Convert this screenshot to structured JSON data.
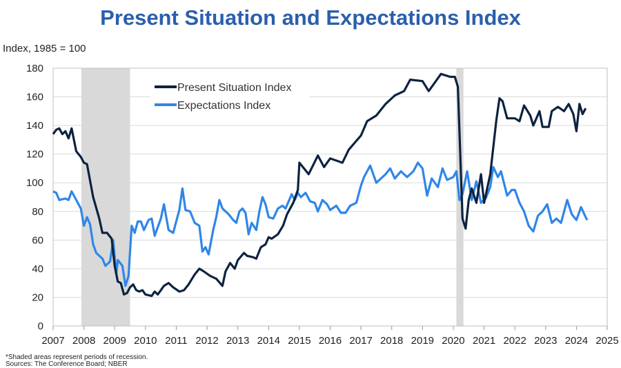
{
  "chart_data": {
    "type": "line",
    "title": "Present Situation and Expectations Index",
    "ylabel": "Index, 1985 = 100",
    "xlabel": "",
    "xlim": [
      2007,
      2025
    ],
    "ylim": [
      0,
      180
    ],
    "xticks": [
      2007,
      2008,
      2009,
      2010,
      2011,
      2012,
      2013,
      2014,
      2015,
      2016,
      2017,
      2018,
      2019,
      2020,
      2021,
      2022,
      2023,
      2024,
      2025
    ],
    "yticks": [
      0,
      20,
      40,
      60,
      80,
      100,
      120,
      140,
      160,
      180
    ],
    "grid": "horizontal",
    "legend": "top-left",
    "recessions": [
      [
        2007.92,
        2009.5
      ],
      [
        2020.1,
        2020.33
      ]
    ],
    "series": [
      {
        "name": "Present Situation Index",
        "color": "#0d2240",
        "x": [
          2007.0,
          2007.1,
          2007.2,
          2007.3,
          2007.4,
          2007.5,
          2007.6,
          2007.75,
          2007.9,
          2008.0,
          2008.1,
          2008.3,
          2008.5,
          2008.6,
          2008.75,
          2008.9,
          2009.0,
          2009.1,
          2009.2,
          2009.3,
          2009.4,
          2009.5,
          2009.6,
          2009.7,
          2009.8,
          2009.9,
          2010.0,
          2010.2,
          2010.3,
          2010.4,
          2010.6,
          2010.75,
          2010.9,
          2011.1,
          2011.25,
          2011.4,
          2011.6,
          2011.75,
          2011.9,
          2012.1,
          2012.3,
          2012.5,
          2012.6,
          2012.75,
          2012.9,
          2013.0,
          2013.2,
          2013.3,
          2013.5,
          2013.6,
          2013.75,
          2013.9,
          2014.0,
          2014.1,
          2014.3,
          2014.47,
          2014.6,
          2014.8,
          2014.95,
          2015.0,
          2015.3,
          2015.6,
          2015.8,
          2016.0,
          2016.4,
          2016.6,
          2016.8,
          2017.0,
          2017.2,
          2017.5,
          2017.8,
          2018.1,
          2018.4,
          2018.6,
          2019.0,
          2019.2,
          2019.6,
          2019.9,
          2020.05,
          2020.15,
          2020.3,
          2020.4,
          2020.5,
          2020.6,
          2020.75,
          2020.9,
          2021.0,
          2021.2,
          2021.4,
          2021.5,
          2021.6,
          2021.75,
          2022.0,
          2022.15,
          2022.3,
          2022.5,
          2022.6,
          2022.8,
          2022.9,
          2023.1,
          2023.2,
          2023.4,
          2023.6,
          2023.75,
          2023.9,
          2024.0,
          2024.1,
          2024.2,
          2024.3
        ],
        "y": [
          134,
          137,
          138,
          134,
          136,
          131,
          138,
          122,
          118,
          114,
          113,
          90,
          75,
          65,
          65,
          61,
          42,
          31,
          30,
          22,
          23,
          27,
          29,
          25,
          24,
          25,
          22,
          21,
          24,
          22,
          28,
          30,
          27,
          24,
          25,
          29,
          36,
          40,
          38,
          35,
          33,
          28,
          38,
          44,
          40,
          46,
          51,
          49,
          48,
          47,
          55,
          57,
          62,
          61,
          64,
          70,
          78,
          86,
          95,
          114,
          106,
          119,
          111,
          117,
          114,
          123,
          128,
          133,
          143,
          147,
          155,
          161,
          164,
          172,
          171,
          164,
          176,
          174,
          174,
          167,
          75,
          68,
          88,
          96,
          86,
          106,
          86,
          106,
          144,
          159,
          157,
          145,
          145,
          143,
          154,
          147,
          140,
          150,
          139,
          139,
          150,
          153,
          150,
          155,
          148,
          136,
          155,
          148,
          152
        ]
      },
      {
        "name": "Expectations Index",
        "color": "#2f86e8",
        "x": [
          2007.0,
          2007.1,
          2007.2,
          2007.4,
          2007.5,
          2007.6,
          2007.8,
          2007.9,
          2008.0,
          2008.1,
          2008.2,
          2008.3,
          2008.4,
          2008.6,
          2008.7,
          2008.85,
          2008.95,
          2009.05,
          2009.1,
          2009.25,
          2009.35,
          2009.45,
          2009.55,
          2009.65,
          2009.75,
          2009.85,
          2009.95,
          2010.1,
          2010.2,
          2010.3,
          2010.5,
          2010.6,
          2010.75,
          2010.9,
          2011.0,
          2011.1,
          2011.2,
          2011.3,
          2011.45,
          2011.6,
          2011.75,
          2011.85,
          2011.95,
          2012.05,
          2012.2,
          2012.3,
          2012.4,
          2012.5,
          2012.7,
          2012.85,
          2012.95,
          2013.05,
          2013.15,
          2013.25,
          2013.35,
          2013.45,
          2013.6,
          2013.7,
          2013.8,
          2013.9,
          2014.0,
          2014.15,
          2014.3,
          2014.45,
          2014.55,
          2014.65,
          2014.75,
          2014.85,
          2014.95,
          2015.05,
          2015.2,
          2015.35,
          2015.5,
          2015.6,
          2015.75,
          2015.9,
          2016.0,
          2016.2,
          2016.35,
          2016.5,
          2016.65,
          2016.85,
          2017.0,
          2017.1,
          2017.3,
          2017.5,
          2017.6,
          2017.8,
          2017.95,
          2018.1,
          2018.3,
          2018.5,
          2018.7,
          2018.85,
          2019.0,
          2019.15,
          2019.3,
          2019.5,
          2019.65,
          2019.8,
          2020.0,
          2020.1,
          2020.2,
          2020.3,
          2020.45,
          2020.6,
          2020.75,
          2020.9,
          2021.05,
          2021.2,
          2021.3,
          2021.45,
          2021.55,
          2021.75,
          2021.9,
          2022.0,
          2022.15,
          2022.3,
          2022.45,
          2022.6,
          2022.75,
          2022.9,
          2023.05,
          2023.2,
          2023.35,
          2023.5,
          2023.7,
          2023.85,
          2024.0,
          2024.15,
          2024.3,
          2024.35
        ],
        "y": [
          94,
          93,
          88,
          89,
          88,
          94,
          86,
          82,
          70,
          76,
          71,
          57,
          51,
          47,
          42,
          45,
          60,
          36,
          46,
          42,
          28,
          35,
          70,
          65,
          73,
          73,
          67,
          74,
          75,
          63,
          75,
          85,
          67,
          65,
          73,
          81,
          96,
          81,
          80,
          72,
          70,
          52,
          55,
          50,
          67,
          76,
          88,
          82,
          78,
          74,
          72,
          80,
          82,
          79,
          64,
          72,
          67,
          80,
          90,
          85,
          76,
          75,
          82,
          84,
          82,
          87,
          92,
          88,
          93,
          90,
          93,
          87,
          86,
          80,
          88,
          85,
          81,
          84,
          79,
          79,
          84,
          86,
          98,
          104,
          112,
          100,
          102,
          106,
          110,
          103,
          108,
          104,
          108,
          114,
          110,
          91,
          103,
          97,
          110,
          102,
          104,
          108,
          88,
          92,
          108,
          88,
          101,
          86,
          89,
          97,
          111,
          104,
          108,
          91,
          95,
          95,
          86,
          80,
          70,
          66,
          77,
          80,
          85,
          72,
          75,
          72,
          88,
          78,
          74,
          83,
          76,
          74
        ]
      }
    ]
  },
  "footnotes": {
    "shaded": "*Shaded areas represent periods of recession.",
    "sources": "Sources: The Conference Board; NBER"
  }
}
